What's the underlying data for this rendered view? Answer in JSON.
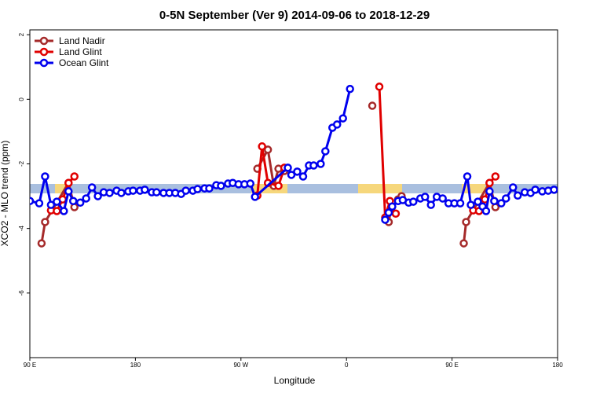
{
  "chart_data": {
    "type": "line",
    "title": "0-5N September (Ver 9)   2014-09-06 to 2018-12-29",
    "x_label": "Longitude",
    "y_label": "XCO2 - MLO trend (ppm)",
    "xlim": [
      90,
      540
    ],
    "ylim": [
      -8,
      2.15
    ],
    "xticks": [
      {
        "value": 90,
        "label": "90 E"
      },
      {
        "value": 180,
        "label": "180"
      },
      {
        "value": 270,
        "label": "90 W"
      },
      {
        "value": 360,
        "label": "0"
      },
      {
        "value": 450,
        "label": "90 E"
      },
      {
        "value": 540,
        "label": "180"
      }
    ],
    "yticks": [
      -6,
      -4,
      -2,
      0,
      2
    ],
    "legend": "top-left",
    "series": [
      {
        "name": "Land Nadir",
        "color": "#a52a2a",
        "x": [
          100,
          103,
          123,
          128,
          null,
          284,
          293,
          298,
          302,
          307,
          null,
          382,
          null,
          396,
          398,
          404,
          407,
          null,
          460,
          462,
          482,
          487
        ],
        "values": [
          -4.46,
          -3.8,
          -2.59,
          -3.34,
          null,
          -2.15,
          -1.56,
          -2.68,
          -2.15,
          -2.22,
          null,
          -0.2,
          null,
          -3.8,
          -3.39,
          -3.1,
          -3.0,
          null,
          -4.46,
          -3.8,
          -2.59,
          -3.34
        ]
      },
      {
        "name": "Land Glint",
        "color": "#e00000",
        "x": [
          108,
          113,
          118,
          123,
          128,
          null,
          284,
          288,
          293,
          302,
          307,
          null,
          388,
          393,
          397,
          402,
          null,
          468,
          473,
          478,
          482,
          487
        ],
        "values": [
          -3.44,
          -3.46,
          -3.1,
          -2.59,
          -2.39,
          null,
          -2.98,
          -1.46,
          -2.59,
          -2.68,
          -2.12,
          null,
          0.39,
          -3.66,
          -3.15,
          -3.54,
          null,
          -3.44,
          -3.46,
          -3.1,
          -2.59,
          -2.39
        ]
      },
      {
        "name": "Ocean Glint",
        "color": "#0000ee",
        "x": [
          90,
          98,
          103,
          108,
          113,
          119,
          123,
          127,
          133,
          138,
          143,
          148,
          153,
          158,
          164,
          168,
          174,
          178,
          184,
          188,
          194,
          198,
          204,
          209,
          214,
          219,
          223,
          229,
          233,
          239,
          243,
          249,
          253,
          259,
          263,
          268,
          273,
          278,
          282,
          310,
          313,
          318,
          323,
          328,
          332,
          338,
          342,
          348,
          352,
          357,
          363,
          null,
          393,
          396,
          399,
          404,
          408,
          413,
          417,
          423,
          427,
          432,
          437,
          442,
          447,
          452,
          457,
          463,
          466,
          472,
          476,
          479,
          482,
          486,
          492,
          496,
          502,
          506,
          512,
          517,
          521,
          527,
          532,
          537
        ],
        "values": [
          -3.15,
          -3.22,
          -2.39,
          -3.27,
          -3.17,
          -3.46,
          -2.85,
          -3.15,
          -3.2,
          -3.07,
          -2.73,
          -3.0,
          -2.88,
          -2.9,
          -2.83,
          -2.9,
          -2.85,
          -2.83,
          -2.83,
          -2.8,
          -2.88,
          -2.88,
          -2.9,
          -2.9,
          -2.9,
          -2.93,
          -2.83,
          -2.83,
          -2.78,
          -2.76,
          -2.76,
          -2.66,
          -2.68,
          -2.61,
          -2.59,
          -2.63,
          -2.63,
          -2.61,
          -3.02,
          -2.12,
          -2.34,
          -2.24,
          -2.39,
          -2.05,
          -2.05,
          -2.0,
          -1.61,
          -0.88,
          -0.78,
          -0.59,
          0.32,
          null,
          -3.73,
          -3.51,
          -3.32,
          -3.15,
          -3.12,
          -3.2,
          -3.17,
          -3.07,
          -3.02,
          -3.27,
          -3.02,
          -3.07,
          -3.22,
          -3.22,
          -3.22,
          -2.39,
          -3.27,
          -3.17,
          -3.32,
          -3.46,
          -2.85,
          -3.15,
          -3.22,
          -3.07,
          -2.73,
          -2.98,
          -2.88,
          -2.9,
          -2.8,
          -2.85,
          -2.83,
          -2.8
        ]
      }
    ]
  }
}
